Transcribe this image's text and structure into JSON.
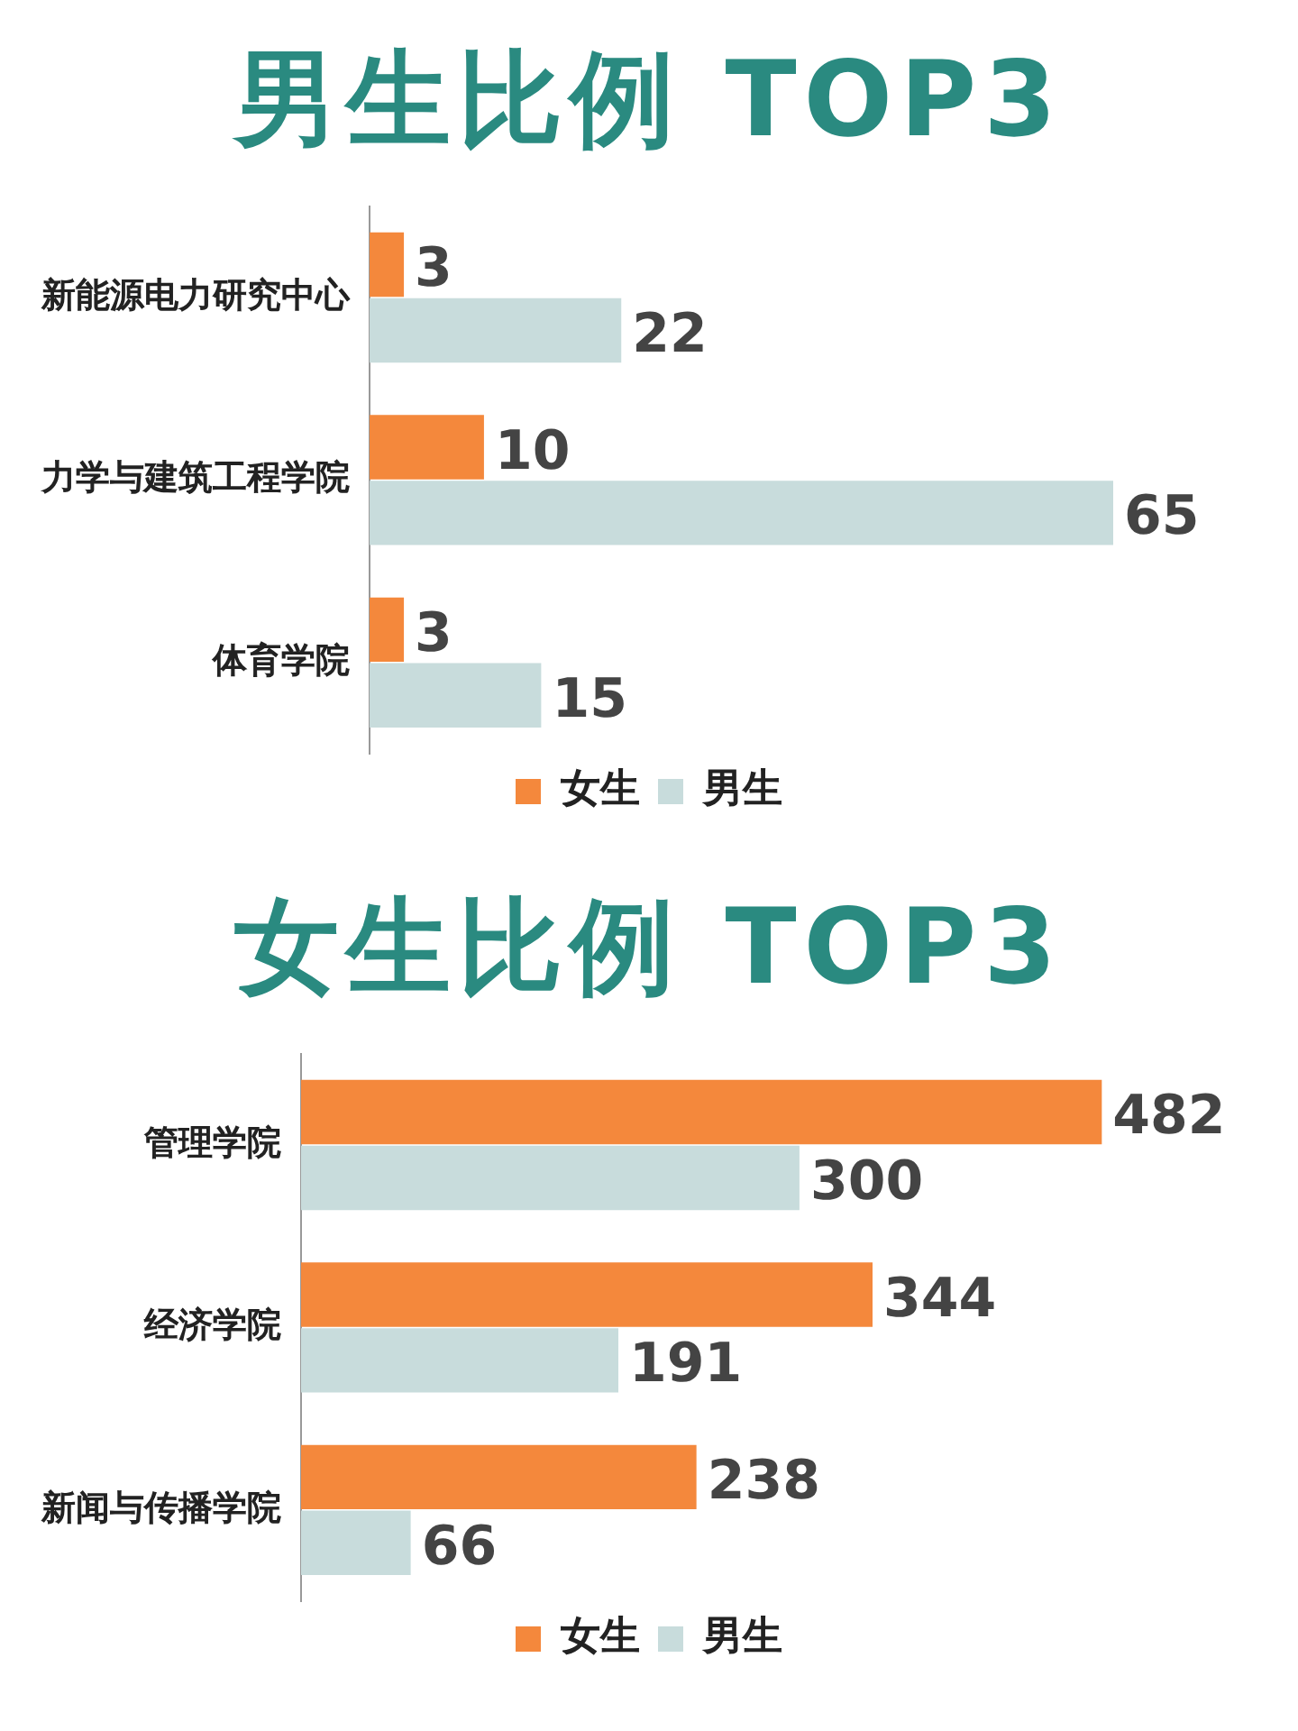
{
  "chart_data": [
    {
      "type": "bar",
      "title": "男生比例 TOP3",
      "orientation": "horizontal",
      "categories": [
        "新能源电力研究中心",
        "力学与建筑工程学院",
        "体育学院"
      ],
      "series": [
        {
          "name": "女生",
          "color": "#f4883c",
          "values": [
            3,
            10,
            3
          ]
        },
        {
          "name": "男生",
          "color": "#c8dcdc",
          "values": [
            22,
            65,
            15
          ]
        }
      ],
      "data_labels": true,
      "legend": "bottom"
    },
    {
      "type": "bar",
      "title": "女生比例 TOP3",
      "orientation": "horizontal",
      "categories": [
        "管理学院",
        "经济学院",
        "新闻与传播学院"
      ],
      "series": [
        {
          "name": "女生",
          "color": "#f4883c",
          "values": [
            482,
            344,
            238
          ]
        },
        {
          "name": "男生",
          "color": "#c8dcdc",
          "values": [
            300,
            191,
            66
          ]
        }
      ],
      "data_labels": true,
      "legend": "bottom"
    }
  ]
}
